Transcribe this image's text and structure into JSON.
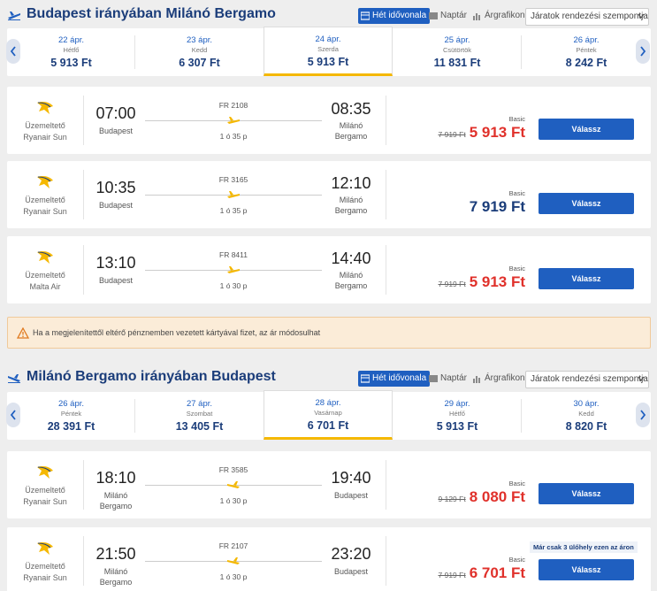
{
  "outbound": {
    "title": "Budapest irányában Milánó Bergamo",
    "view_tabs": [
      "Hét idővonala",
      "Naptár",
      "Árgrafikon"
    ],
    "sort_label": "Járatok rendezési szempontja:",
    "dates": [
      {
        "date": "22 ápr.",
        "weekday": "Hétfő",
        "price": "5 913 Ft"
      },
      {
        "date": "23 ápr.",
        "weekday": "Kedd",
        "price": "6 307 Ft"
      },
      {
        "date": "24 ápr.",
        "weekday": "Szerda",
        "price": "5 913 Ft",
        "selected": true
      },
      {
        "date": "25 ápr.",
        "weekday": "Csütörtök",
        "price": "11 831 Ft"
      },
      {
        "date": "26 ápr.",
        "weekday": "Péntek",
        "price": "8 242 Ft"
      }
    ],
    "flights": [
      {
        "operated_by": "Üzemeltető",
        "airline": "Ryanair Sun",
        "dep_time": "07:00",
        "dep_city": "Budapest",
        "flight_no": "FR 2108",
        "duration": "1 ó 35 p",
        "arr_time": "08:35",
        "arr_city": "Milánó Bergamo",
        "fare": "Basic",
        "old_price": "7 919 Ft",
        "price": "5 913 Ft",
        "price_color": "red",
        "button": "Válassz"
      },
      {
        "operated_by": "Üzemeltető",
        "airline": "Ryanair Sun",
        "dep_time": "10:35",
        "dep_city": "Budapest",
        "flight_no": "FR 3165",
        "duration": "1 ó 35 p",
        "arr_time": "12:10",
        "arr_city": "Milánó Bergamo",
        "fare": "Basic",
        "old_price": "",
        "price": "7 919 Ft",
        "price_color": "blue",
        "button": "Válassz"
      },
      {
        "operated_by": "Üzemeltető",
        "airline": "Malta Air",
        "dep_time": "13:10",
        "dep_city": "Budapest",
        "flight_no": "FR 8411",
        "duration": "1 ó 30 p",
        "arr_time": "14:40",
        "arr_city": "Milánó Bergamo",
        "fare": "Basic",
        "old_price": "7 919 Ft",
        "price": "5 913 Ft",
        "price_color": "red",
        "button": "Válassz"
      }
    ]
  },
  "warning": {
    "text": "Ha a megjelenítettől eltérő pénznemben vezetett kártyával fizet, az ár módosulhat"
  },
  "inbound": {
    "title": "Milánó Bergamo irányában Budapest",
    "view_tabs": [
      "Hét idővonala",
      "Naptár",
      "Árgrafikon"
    ],
    "sort_label": "Járatok rendezési szempontja:",
    "dates": [
      {
        "date": "26 ápr.",
        "weekday": "Péntek",
        "price": "28 391 Ft"
      },
      {
        "date": "27 ápr.",
        "weekday": "Szombat",
        "price": "13 405 Ft"
      },
      {
        "date": "28 ápr.",
        "weekday": "Vasárnap",
        "price": "6 701 Ft",
        "selected": true
      },
      {
        "date": "29 ápr.",
        "weekday": "Hétfő",
        "price": "5 913 Ft"
      },
      {
        "date": "30 ápr.",
        "weekday": "Kedd",
        "price": "8 820 Ft"
      }
    ],
    "flights": [
      {
        "operated_by": "Üzemeltető",
        "airline": "Ryanair Sun",
        "dep_time": "18:10",
        "dep_city": "Milánó Bergamo",
        "flight_no": "FR 3585",
        "duration": "1 ó 30 p",
        "arr_time": "19:40",
        "arr_city": "Budapest",
        "fare": "Basic",
        "old_price": "9 129 Ft",
        "price": "8 080 Ft",
        "price_color": "red",
        "button": "Válassz",
        "badge": ""
      },
      {
        "operated_by": "Üzemeltető",
        "airline": "Ryanair Sun",
        "dep_time": "21:50",
        "dep_city": "Milánó Bergamo",
        "flight_no": "FR 2107",
        "duration": "1 ó 30 p",
        "arr_time": "23:20",
        "arr_city": "Budapest",
        "fare": "Basic",
        "old_price": "7 919 Ft",
        "price": "6 701 Ft",
        "price_color": "red",
        "button": "Válassz",
        "badge": "Már csak 3 ülőhely ezen az áron"
      }
    ]
  },
  "colors": {
    "brand_blue": "#1f5fc0",
    "dark_blue": "#1b3d7a",
    "sale_red": "#e0312b",
    "accent_yellow": "#f5b800",
    "warning_bg": "#fbecd8"
  },
  "icons": [
    "plane-icon",
    "week-timeline-icon",
    "calendar-icon",
    "price-chart-icon",
    "chevron-down-icon",
    "chevron-left-icon",
    "chevron-right-icon",
    "ryanair-harp-logo",
    "warning-icon"
  ]
}
